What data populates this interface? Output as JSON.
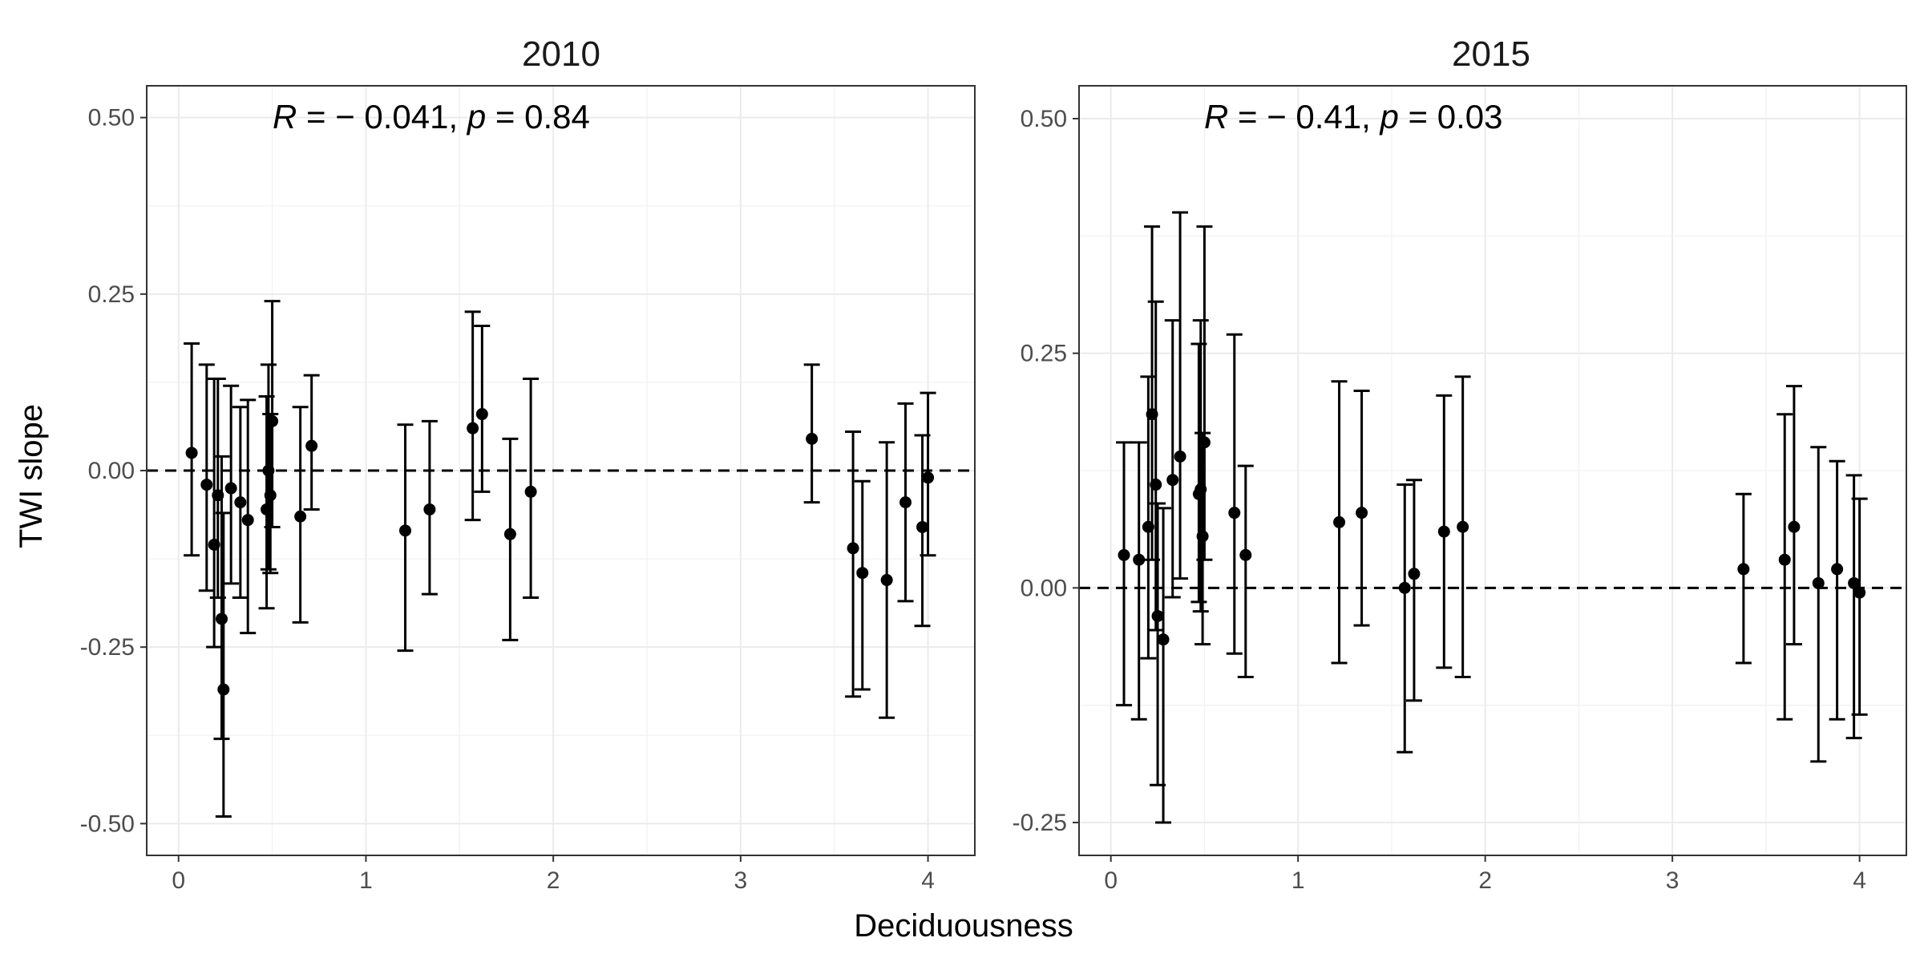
{
  "chart_data": {
    "type": "scatter",
    "xlabel": "Deciduousness",
    "ylabel": "TWI slope",
    "grid": true,
    "reference_line": {
      "y": 0,
      "style": "dashed"
    },
    "panels": [
      {
        "title": "2010",
        "annotation": {
          "r_label": "R",
          "r_text": " = − 0.041, ",
          "p_label": "p",
          "p_text": " = 0.84"
        },
        "xlim": [
          -0.17,
          4.25
        ],
        "ylim": [
          -0.545,
          0.545
        ],
        "x_ticks": [
          0,
          1,
          2,
          3,
          4
        ],
        "x_tick_labels": [
          "0",
          "1",
          "2",
          "3",
          "4"
        ],
        "y_ticks": [
          0.5,
          0.25,
          0.0,
          -0.25,
          -0.5
        ],
        "y_tick_labels": [
          "0.50",
          "0.25",
          "0.00",
          "-0.25",
          "-0.50"
        ],
        "points": [
          {
            "x": 0.07,
            "y": 0.025,
            "lo": -0.12,
            "hi": 0.18
          },
          {
            "x": 0.15,
            "y": -0.02,
            "lo": -0.17,
            "hi": 0.15
          },
          {
            "x": 0.19,
            "y": -0.105,
            "lo": -0.25,
            "hi": 0.13
          },
          {
            "x": 0.21,
            "y": -0.035,
            "lo": -0.18,
            "hi": 0.13
          },
          {
            "x": 0.23,
            "y": -0.21,
            "lo": -0.38,
            "hi": 0.02
          },
          {
            "x": 0.24,
            "y": -0.31,
            "lo": -0.49,
            "hi": -0.06
          },
          {
            "x": 0.28,
            "y": -0.025,
            "lo": -0.16,
            "hi": 0.12
          },
          {
            "x": 0.33,
            "y": -0.045,
            "lo": -0.18,
            "hi": 0.09
          },
          {
            "x": 0.37,
            "y": -0.07,
            "lo": -0.23,
            "hi": 0.1
          },
          {
            "x": 0.47,
            "y": -0.055,
            "lo": -0.195,
            "hi": 0.105
          },
          {
            "x": 0.48,
            "y": 0.0,
            "lo": -0.14,
            "hi": 0.15
          },
          {
            "x": 0.49,
            "y": -0.035,
            "lo": -0.145,
            "hi": 0.08
          },
          {
            "x": 0.5,
            "y": 0.07,
            "lo": -0.08,
            "hi": 0.24
          },
          {
            "x": 0.65,
            "y": -0.065,
            "lo": -0.215,
            "hi": 0.09
          },
          {
            "x": 0.71,
            "y": 0.035,
            "lo": -0.055,
            "hi": 0.135
          },
          {
            "x": 1.21,
            "y": -0.085,
            "lo": -0.255,
            "hi": 0.065
          },
          {
            "x": 1.34,
            "y": -0.055,
            "lo": -0.175,
            "hi": 0.07
          },
          {
            "x": 1.57,
            "y": 0.06,
            "lo": -0.07,
            "hi": 0.225
          },
          {
            "x": 1.62,
            "y": 0.08,
            "lo": -0.03,
            "hi": 0.205
          },
          {
            "x": 1.77,
            "y": -0.09,
            "lo": -0.24,
            "hi": 0.045
          },
          {
            "x": 1.88,
            "y": -0.03,
            "lo": -0.18,
            "hi": 0.13
          },
          {
            "x": 3.38,
            "y": 0.045,
            "lo": -0.045,
            "hi": 0.15
          },
          {
            "x": 3.6,
            "y": -0.11,
            "lo": -0.32,
            "hi": 0.055
          },
          {
            "x": 3.65,
            "y": -0.145,
            "lo": -0.31,
            "hi": -0.015
          },
          {
            "x": 3.78,
            "y": -0.155,
            "lo": -0.35,
            "hi": 0.04
          },
          {
            "x": 3.88,
            "y": -0.045,
            "lo": -0.185,
            "hi": 0.095
          },
          {
            "x": 3.97,
            "y": -0.08,
            "lo": -0.22,
            "hi": 0.05
          },
          {
            "x": 4.0,
            "y": -0.01,
            "lo": -0.12,
            "hi": 0.11
          }
        ]
      },
      {
        "title": "2015",
        "annotation": {
          "r_label": "R",
          "r_text": " = − 0.41, ",
          "p_label": "p",
          "p_text": " = 0.03"
        },
        "xlim": [
          -0.17,
          4.25
        ],
        "ylim": [
          -0.285,
          0.535
        ],
        "x_ticks": [
          0,
          1,
          2,
          3,
          4
        ],
        "x_tick_labels": [
          "0",
          "1",
          "2",
          "3",
          "4"
        ],
        "y_ticks": [
          0.5,
          0.25,
          0.0,
          -0.25
        ],
        "y_tick_labels": [
          "0.50",
          "0.25",
          "0.00",
          "-0.25"
        ],
        "points": [
          {
            "x": 0.07,
            "y": 0.035,
            "lo": -0.125,
            "hi": 0.155
          },
          {
            "x": 0.15,
            "y": 0.03,
            "lo": -0.14,
            "hi": 0.155
          },
          {
            "x": 0.2,
            "y": 0.065,
            "lo": -0.075,
            "hi": 0.225
          },
          {
            "x": 0.22,
            "y": 0.185,
            "lo": 0.03,
            "hi": 0.385
          },
          {
            "x": 0.24,
            "y": 0.11,
            "lo": -0.045,
            "hi": 0.305
          },
          {
            "x": 0.25,
            "y": -0.03,
            "lo": -0.21,
            "hi": 0.09
          },
          {
            "x": 0.28,
            "y": -0.055,
            "lo": -0.25,
            "hi": 0.085
          },
          {
            "x": 0.33,
            "y": 0.115,
            "lo": -0.01,
            "hi": 0.285
          },
          {
            "x": 0.37,
            "y": 0.14,
            "lo": 0.01,
            "hi": 0.4
          },
          {
            "x": 0.47,
            "y": 0.1,
            "lo": -0.015,
            "hi": 0.26
          },
          {
            "x": 0.48,
            "y": 0.105,
            "lo": -0.025,
            "hi": 0.285
          },
          {
            "x": 0.49,
            "y": 0.055,
            "lo": -0.06,
            "hi": 0.165
          },
          {
            "x": 0.5,
            "y": 0.155,
            "lo": 0.03,
            "hi": 0.385
          },
          {
            "x": 0.66,
            "y": 0.08,
            "lo": -0.07,
            "hi": 0.27
          },
          {
            "x": 0.72,
            "y": 0.035,
            "lo": -0.095,
            "hi": 0.13
          },
          {
            "x": 1.22,
            "y": 0.07,
            "lo": -0.08,
            "hi": 0.22
          },
          {
            "x": 1.34,
            "y": 0.08,
            "lo": -0.04,
            "hi": 0.21
          },
          {
            "x": 1.57,
            "y": 0.0,
            "lo": -0.175,
            "hi": 0.11
          },
          {
            "x": 1.62,
            "y": 0.015,
            "lo": -0.12,
            "hi": 0.115
          },
          {
            "x": 1.78,
            "y": 0.06,
            "lo": -0.085,
            "hi": 0.205
          },
          {
            "x": 1.88,
            "y": 0.065,
            "lo": -0.095,
            "hi": 0.225
          },
          {
            "x": 3.38,
            "y": 0.02,
            "lo": -0.08,
            "hi": 0.1
          },
          {
            "x": 3.6,
            "y": 0.03,
            "lo": -0.14,
            "hi": 0.185
          },
          {
            "x": 3.65,
            "y": 0.065,
            "lo": -0.06,
            "hi": 0.215
          },
          {
            "x": 3.78,
            "y": 0.005,
            "lo": -0.185,
            "hi": 0.15
          },
          {
            "x": 3.88,
            "y": 0.02,
            "lo": -0.14,
            "hi": 0.135
          },
          {
            "x": 3.97,
            "y": 0.005,
            "lo": -0.16,
            "hi": 0.12
          },
          {
            "x": 4.0,
            "y": -0.005,
            "lo": -0.135,
            "hi": 0.095
          }
        ]
      }
    ]
  }
}
